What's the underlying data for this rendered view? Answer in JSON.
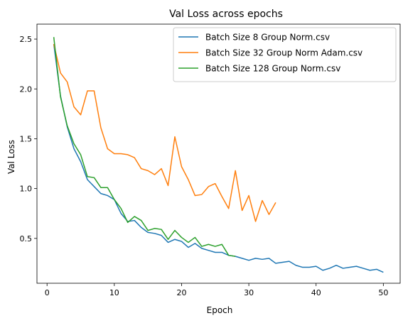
{
  "chart_data": {
    "type": "line",
    "title": "Val Loss across epochs",
    "xlabel": "Epoch",
    "ylabel": "Val Loss",
    "xlim": [
      -1.5,
      52.5
    ],
    "ylim": [
      0.05,
      2.65
    ],
    "xticks": [
      0,
      10,
      20,
      30,
      40,
      50
    ],
    "yticks": [
      0.5,
      1.0,
      1.5,
      2.0,
      2.5
    ],
    "grid": false,
    "legend_position": "top-right",
    "series": [
      {
        "name": "Batch Size 8 Group Norm.csv",
        "color": "#1f77b4",
        "x": [
          1,
          2,
          3,
          4,
          5,
          6,
          7,
          8,
          9,
          10,
          11,
          12,
          13,
          14,
          15,
          16,
          17,
          18,
          19,
          20,
          21,
          22,
          23,
          24,
          25,
          26,
          27,
          28,
          29,
          30,
          31,
          32,
          33,
          34,
          35,
          36,
          37,
          38,
          39,
          40,
          41,
          42,
          43,
          44,
          45,
          46,
          47,
          48,
          49,
          50
        ],
        "y": [
          2.45,
          1.93,
          1.62,
          1.4,
          1.27,
          1.09,
          1.02,
          0.95,
          0.93,
          0.89,
          0.75,
          0.67,
          0.68,
          0.61,
          0.56,
          0.55,
          0.53,
          0.46,
          0.49,
          0.47,
          0.41,
          0.45,
          0.4,
          0.38,
          0.36,
          0.36,
          0.33,
          0.32,
          0.3,
          0.28,
          0.3,
          0.29,
          0.3,
          0.25,
          0.26,
          0.27,
          0.23,
          0.21,
          0.21,
          0.22,
          0.18,
          0.2,
          0.23,
          0.2,
          0.21,
          0.22,
          0.2,
          0.18,
          0.19,
          0.16
        ]
      },
      {
        "name": "Batch Size 32 Group Norm Adam.csv",
        "color": "#ff7f0e",
        "x": [
          1,
          2,
          3,
          4,
          5,
          6,
          7,
          8,
          9,
          10,
          11,
          12,
          13,
          14,
          15,
          16,
          17,
          18,
          19,
          20,
          21,
          22,
          23,
          24,
          25,
          26,
          27,
          28,
          29,
          30,
          31,
          32,
          33,
          34
        ],
        "y": [
          2.45,
          2.16,
          2.07,
          1.82,
          1.74,
          1.98,
          1.98,
          1.61,
          1.4,
          1.35,
          1.35,
          1.34,
          1.31,
          1.2,
          1.18,
          1.14,
          1.2,
          1.03,
          1.52,
          1.22,
          1.09,
          0.93,
          0.94,
          1.02,
          1.05,
          0.92,
          0.8,
          1.18,
          0.78,
          0.93,
          0.67,
          0.88,
          0.74,
          0.86
        ]
      },
      {
        "name": "Batch Size 128 Group Norm.csv",
        "color": "#2ca02c",
        "x": [
          1,
          2,
          3,
          4,
          5,
          6,
          7,
          8,
          9,
          10,
          11,
          12,
          13,
          14,
          15,
          16,
          17,
          18,
          19,
          20,
          21,
          22,
          23,
          24,
          25,
          26,
          27,
          28
        ],
        "y": [
          2.52,
          1.92,
          1.63,
          1.45,
          1.34,
          1.12,
          1.11,
          1.01,
          1.01,
          0.89,
          0.8,
          0.66,
          0.72,
          0.68,
          0.58,
          0.6,
          0.59,
          0.49,
          0.58,
          0.51,
          0.46,
          0.51,
          0.42,
          0.44,
          0.42,
          0.44,
          0.33,
          0.32
        ]
      }
    ]
  }
}
